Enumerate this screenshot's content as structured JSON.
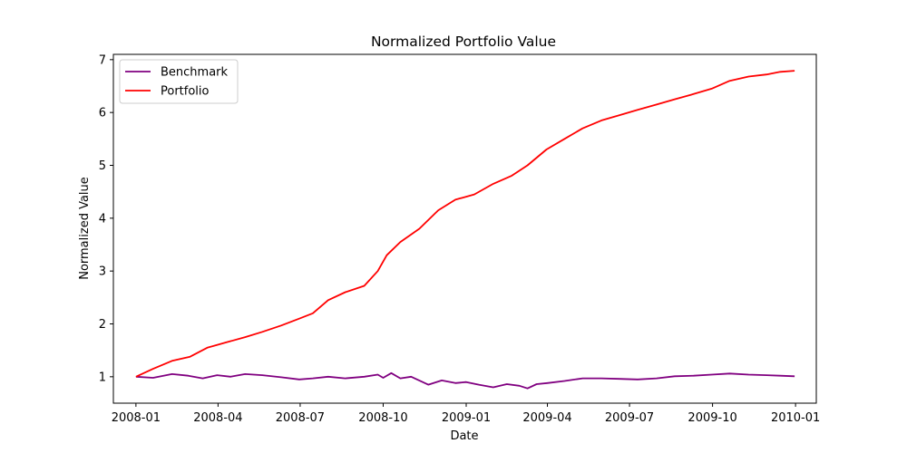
{
  "chart_data": {
    "type": "line",
    "title": "Normalized Portfolio Value",
    "xlabel": "Date",
    "ylabel": "Normalized Value",
    "xlim": [
      "2007-12-07",
      "2010-01-24"
    ],
    "ylim": [
      0.5,
      7.1
    ],
    "x_ticks": [
      "2008-01",
      "2008-04",
      "2008-07",
      "2008-10",
      "2009-01",
      "2009-04",
      "2009-07",
      "2009-10",
      "2010-01"
    ],
    "y_ticks": [
      1,
      2,
      3,
      4,
      5,
      6,
      7
    ],
    "grid": false,
    "legend": "top-left",
    "series": [
      {
        "name": "Benchmark",
        "color": "#800080",
        "x": [
          "2008-01-01",
          "2008-01-20",
          "2008-02-10",
          "2008-02-28",
          "2008-03-15",
          "2008-03-31",
          "2008-04-15",
          "2008-05-01",
          "2008-05-20",
          "2008-06-10",
          "2008-06-30",
          "2008-07-15",
          "2008-08-01",
          "2008-08-20",
          "2008-09-10",
          "2008-09-25",
          "2008-10-01",
          "2008-10-10",
          "2008-10-20",
          "2008-11-01",
          "2008-11-20",
          "2008-12-05",
          "2008-12-20",
          "2009-01-01",
          "2009-01-15",
          "2009-01-31",
          "2009-02-15",
          "2009-03-01",
          "2009-03-10",
          "2009-03-20",
          "2009-04-01",
          "2009-04-20",
          "2009-05-10",
          "2009-05-31",
          "2009-06-20",
          "2009-07-10",
          "2009-07-31",
          "2009-08-20",
          "2009-09-10",
          "2009-09-30",
          "2009-10-20",
          "2009-11-10",
          "2009-11-30",
          "2009-12-15",
          "2009-12-31"
        ],
        "values": [
          1.0,
          0.98,
          1.05,
          1.02,
          0.97,
          1.03,
          1.0,
          1.05,
          1.03,
          0.99,
          0.95,
          0.97,
          1.0,
          0.97,
          1.0,
          1.04,
          0.98,
          1.07,
          0.97,
          1.0,
          0.85,
          0.93,
          0.88,
          0.9,
          0.85,
          0.8,
          0.86,
          0.83,
          0.78,
          0.86,
          0.88,
          0.92,
          0.97,
          0.97,
          0.96,
          0.95,
          0.97,
          1.01,
          1.02,
          1.04,
          1.06,
          1.04,
          1.03,
          1.02,
          1.01
        ]
      },
      {
        "name": "Portfolio",
        "color": "#ff0000",
        "x": [
          "2008-01-01",
          "2008-01-20",
          "2008-02-10",
          "2008-03-01",
          "2008-03-20",
          "2008-04-10",
          "2008-05-01",
          "2008-05-20",
          "2008-06-10",
          "2008-06-30",
          "2008-07-15",
          "2008-08-01",
          "2008-08-20",
          "2008-09-10",
          "2008-09-25",
          "2008-10-05",
          "2008-10-20",
          "2008-11-10",
          "2008-12-01",
          "2008-12-20",
          "2009-01-10",
          "2009-01-31",
          "2009-02-20",
          "2009-03-10",
          "2009-03-31",
          "2009-04-20",
          "2009-05-10",
          "2009-05-31",
          "2009-06-20",
          "2009-07-10",
          "2009-07-31",
          "2009-08-20",
          "2009-09-10",
          "2009-09-30",
          "2009-10-20",
          "2009-11-10",
          "2009-11-30",
          "2009-12-15",
          "2009-12-31"
        ],
        "values": [
          1.0,
          1.15,
          1.3,
          1.38,
          1.55,
          1.65,
          1.75,
          1.85,
          1.97,
          2.1,
          2.2,
          2.45,
          2.6,
          2.72,
          3.0,
          3.3,
          3.55,
          3.8,
          4.15,
          4.35,
          4.45,
          4.65,
          4.8,
          5.0,
          5.3,
          5.5,
          5.7,
          5.85,
          5.95,
          6.05,
          6.15,
          6.25,
          6.35,
          6.45,
          6.6,
          6.68,
          6.72,
          6.77,
          6.79
        ]
      }
    ]
  }
}
